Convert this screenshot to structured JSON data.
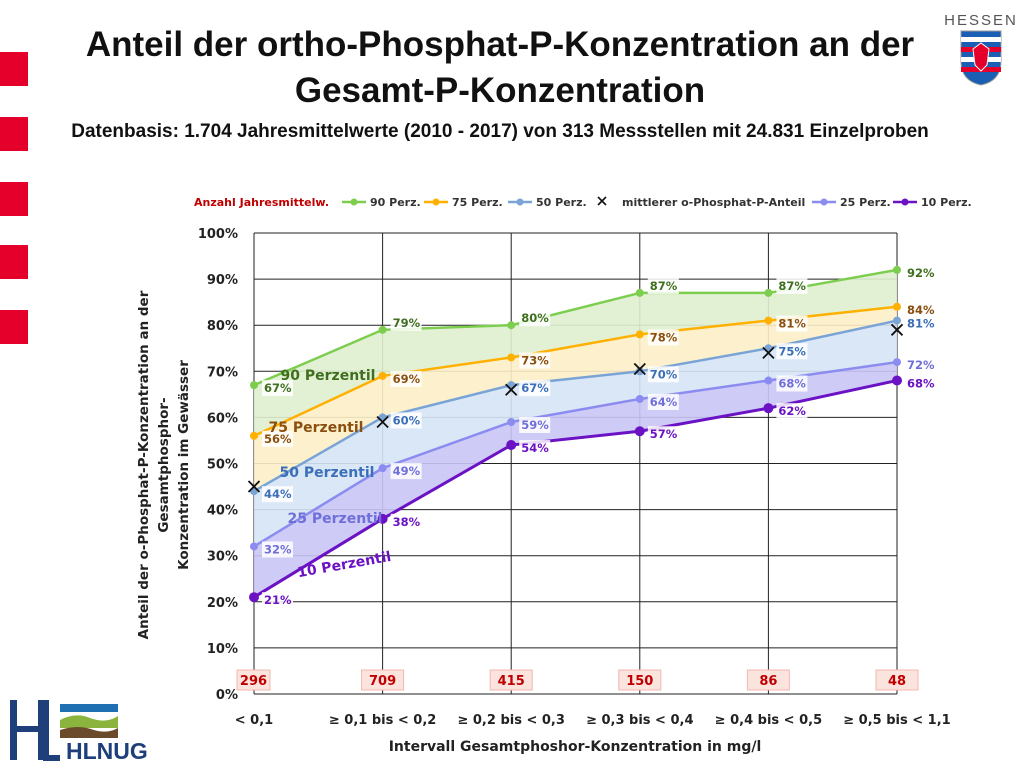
{
  "header": {
    "title": "Anteil der ortho-Phosphat-P-Konzentration an der Gesamt-P-Konzentration",
    "subtitle": "Datenbasis: 1.704 Jahresmittelwerte (2010 - 2017) von 313 Messstellen mit 24.831 Einzelproben"
  },
  "badge": {
    "text": "HESSEN"
  },
  "logo": {
    "text": "HLNUG"
  },
  "colors": {
    "p90": "#7dcd4f",
    "p75": "#ffb000",
    "p50": "#7aa3d6",
    "p25": "#8c8cf0",
    "p10": "#6a12c4",
    "anzahl": "#c00000",
    "accent": "#e4002b"
  },
  "chart_data": {
    "type": "line",
    "categories": [
      "< 0,1",
      "≥ 0,1 bis < 0,2",
      "≥ 0,2 bis < 0,3",
      "≥ 0,3 bis < 0,4",
      "≥ 0,4 bis < 0,5",
      "≥ 0,5 bis < 1,1"
    ],
    "xlabel": "Intervall Gesamtphoshor-Konzentration in mg/l",
    "ylabel": "Anteil der o-Phosphat-P-Konzentration an der Gesamtphosphor-Konzentration im Gewässer",
    "ylim": [
      0,
      100
    ],
    "yticks": [
      0,
      10,
      20,
      30,
      40,
      50,
      60,
      70,
      80,
      90,
      100
    ],
    "grid": true,
    "legend_position": "top",
    "legend_anzahl": "Anzahl Jahresmittelw.",
    "anzahl": [
      "296",
      "709",
      "415",
      "150",
      "86",
      "48"
    ],
    "series": [
      {
        "key": "p90",
        "name": "90 Perz.",
        "values": [
          67,
          79,
          80,
          87,
          87,
          92
        ],
        "labels": [
          "67%",
          "79%",
          "80%",
          "87%",
          "87%",
          "92%"
        ],
        "band_label": "90 Perzentil"
      },
      {
        "key": "p75",
        "name": "75 Perz.",
        "values": [
          56,
          69,
          73,
          78,
          81,
          84
        ],
        "labels": [
          "56%",
          "69%",
          "73%",
          "78%",
          "81%",
          "84%"
        ],
        "band_label": "75 Perzentil"
      },
      {
        "key": "p50",
        "name": "50 Perz.",
        "values": [
          44,
          60,
          67,
          70,
          75,
          81
        ],
        "labels": [
          "44%",
          "60%",
          "67%",
          "70%",
          "75%",
          "81%"
        ],
        "band_label": "50 Perzentil"
      },
      {
        "key": "mean",
        "name": "mittlerer o-Phosphat-P-Anteil",
        "values": [
          45,
          59,
          66,
          70.5,
          74,
          79
        ]
      },
      {
        "key": "p25",
        "name": "25 Perz.",
        "values": [
          32,
          49,
          59,
          64,
          68,
          72
        ],
        "labels": [
          "32%",
          "49%",
          "59%",
          "64%",
          "68%",
          "72%"
        ],
        "band_label": "25 Perzentil"
      },
      {
        "key": "p10",
        "name": "10 Perz.",
        "values": [
          21,
          38,
          54,
          57,
          62,
          68
        ],
        "labels": [
          "21%",
          "38%",
          "54%",
          "57%",
          "62%",
          "68%"
        ],
        "band_label": "10 Perzentil"
      }
    ]
  }
}
